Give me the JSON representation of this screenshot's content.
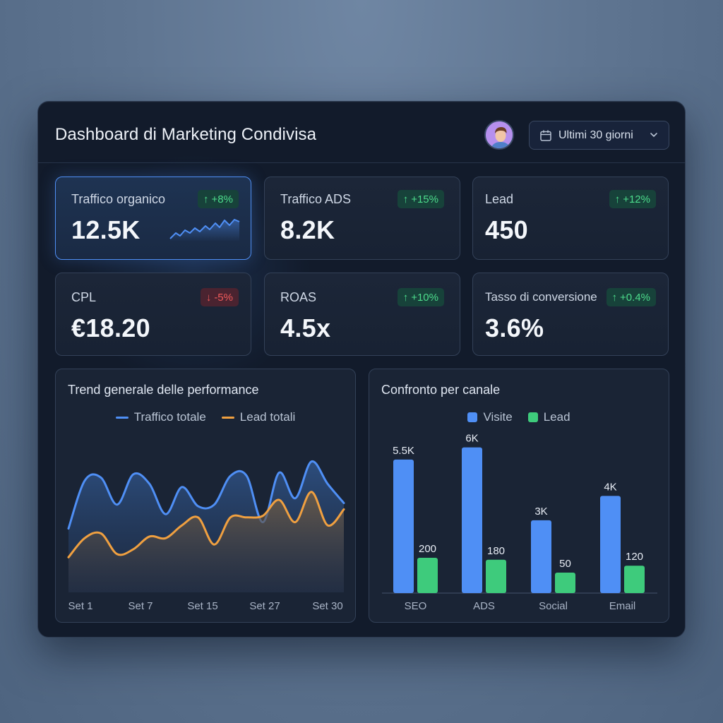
{
  "header": {
    "title": "Dashboard di Marketing Condivisa",
    "date_range": "Ultimi 30 giorni"
  },
  "kpis": [
    {
      "label": "Traffico organico",
      "value": "12.5K",
      "change": "+8%",
      "trend": "up"
    },
    {
      "label": "Traffico ADS",
      "value": "8.2K",
      "change": "+15%",
      "trend": "up"
    },
    {
      "label": "Lead",
      "value": "450",
      "change": "+12%",
      "trend": "up"
    },
    {
      "label": "CPL",
      "value": "€18.20",
      "change": "-5%",
      "trend": "down"
    },
    {
      "label": "ROAS",
      "value": "4.5x",
      "change": "+10%",
      "trend": "up"
    },
    {
      "label": "Tasso di conversione",
      "value": "3.6%",
      "change": "+0.4%",
      "trend": "up"
    }
  ],
  "colors": {
    "accent_blue": "#4f8ff5",
    "line_orange": "#f0a040",
    "bar_green": "#3ecb7c",
    "up_green": "#4ddc8c",
    "down_red": "#ef5a5a"
  },
  "trend_panel": {
    "title": "Trend generale delle performance",
    "legend": [
      "Traffico totale",
      "Lead totali"
    ]
  },
  "channel_panel": {
    "title": "Confronto per canale",
    "legend": [
      "Visite",
      "Lead"
    ]
  },
  "chart_data": [
    {
      "type": "area",
      "title": "Trend generale delle performance",
      "x_ticks": [
        "Set 1",
        "Set 7",
        "Set 15",
        "Set 27",
        "Set 30"
      ],
      "series": [
        {
          "name": "Traffico totale",
          "values": [
            40,
            70,
            72,
            55,
            74,
            68,
            49,
            66,
            54,
            55,
            73,
            73,
            44,
            75,
            59,
            82,
            68,
            56
          ]
        },
        {
          "name": "Lead totali",
          "values": [
            22,
            34,
            37,
            24,
            27,
            35,
            34,
            42,
            47,
            30,
            47,
            47,
            48,
            58,
            44,
            63,
            42,
            52
          ]
        }
      ],
      "ylim": [
        0,
        100
      ],
      "grid": false,
      "legend_position": "top"
    },
    {
      "type": "bar",
      "title": "Confronto per canale",
      "categories": [
        "SEO",
        "ADS",
        "Social",
        "Email"
      ],
      "series": [
        {
          "name": "Visite",
          "values": [
            5500,
            6000,
            3000,
            4000
          ],
          "labels": [
            "5.5K",
            "6K",
            "3K",
            "4K"
          ]
        },
        {
          "name": "Lead",
          "values": [
            200,
            180,
            50,
            120
          ],
          "labels": [
            "200",
            "180",
            "50",
            "120"
          ]
        }
      ],
      "legend_position": "top"
    }
  ]
}
